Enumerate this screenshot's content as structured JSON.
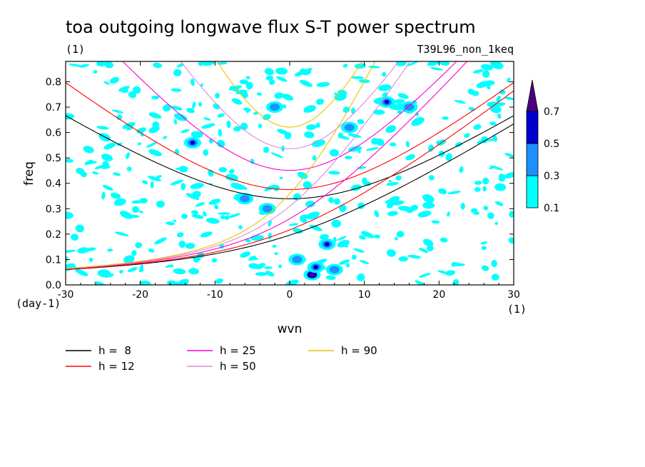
{
  "chart_data": {
    "type": "heatmap",
    "title": "toa outgoing longwave flux S-T power spectrum",
    "subtitle_left": "(1)",
    "subtitle_right": "T39L96_non_1keq",
    "xlabel": "wvn",
    "ylabel": "freq",
    "x_unit_label": "(1)",
    "y_unit_label": "(day-1)",
    "xlim": [
      -30,
      30
    ],
    "ylim": [
      0,
      0.88
    ],
    "x_ticks": [
      -30,
      -20,
      -10,
      0,
      10,
      20,
      30
    ],
    "x_tick_labels": [
      "-30",
      "-20",
      "-10",
      "0",
      "10",
      "20",
      "30"
    ],
    "y_ticks": [
      0.0,
      0.1,
      0.2,
      0.3,
      0.4,
      0.5,
      0.6,
      0.7,
      0.8
    ],
    "y_tick_labels": [
      "0.0",
      "0.1",
      "0.2",
      "0.3",
      "0.4",
      "0.5",
      "0.6",
      "0.7",
      "0.8"
    ],
    "contour_levels": [
      0.1,
      0.3,
      0.5,
      0.7
    ],
    "colorbar_labels": [
      "0.1",
      "0.3",
      "0.5",
      "0.7"
    ],
    "colorbar_colors": [
      "#00ffff",
      "#1e90ff",
      "#0000cd",
      "#4b0082"
    ],
    "dispersion_curves": [
      {
        "label": "h =  8",
        "h": 8,
        "color": "#000000"
      },
      {
        "label": "h = 12",
        "h": 12,
        "color": "#ff0000"
      },
      {
        "label": "h = 25",
        "h": 25,
        "color": "#ff00cc"
      },
      {
        "label": "h = 50",
        "h": 50,
        "color": "#dd88dd"
      },
      {
        "label": "h = 90",
        "h": 90,
        "color": "#f0c000"
      }
    ],
    "power_hotspots": [
      {
        "wvn": 3,
        "freq": 0.04,
        "value": 0.72
      },
      {
        "wvn": 3.5,
        "freq": 0.07,
        "value": 0.55
      },
      {
        "wvn": 5,
        "freq": 0.16,
        "value": 0.5
      },
      {
        "wvn": 6,
        "freq": 0.06,
        "value": 0.45
      },
      {
        "wvn": 13,
        "freq": 0.72,
        "value": 0.55
      },
      {
        "wvn": -13,
        "freq": 0.56,
        "value": 0.5
      },
      {
        "wvn": -6,
        "freq": 0.34,
        "value": 0.45
      },
      {
        "wvn": -3,
        "freq": 0.3,
        "value": 0.45
      },
      {
        "wvn": 1,
        "freq": 0.1,
        "value": 0.4
      },
      {
        "wvn": 16,
        "freq": 0.7,
        "value": 0.45
      },
      {
        "wvn": 8,
        "freq": 0.62,
        "value": 0.4
      },
      {
        "wvn": -2,
        "freq": 0.7,
        "value": 0.42
      }
    ]
  }
}
